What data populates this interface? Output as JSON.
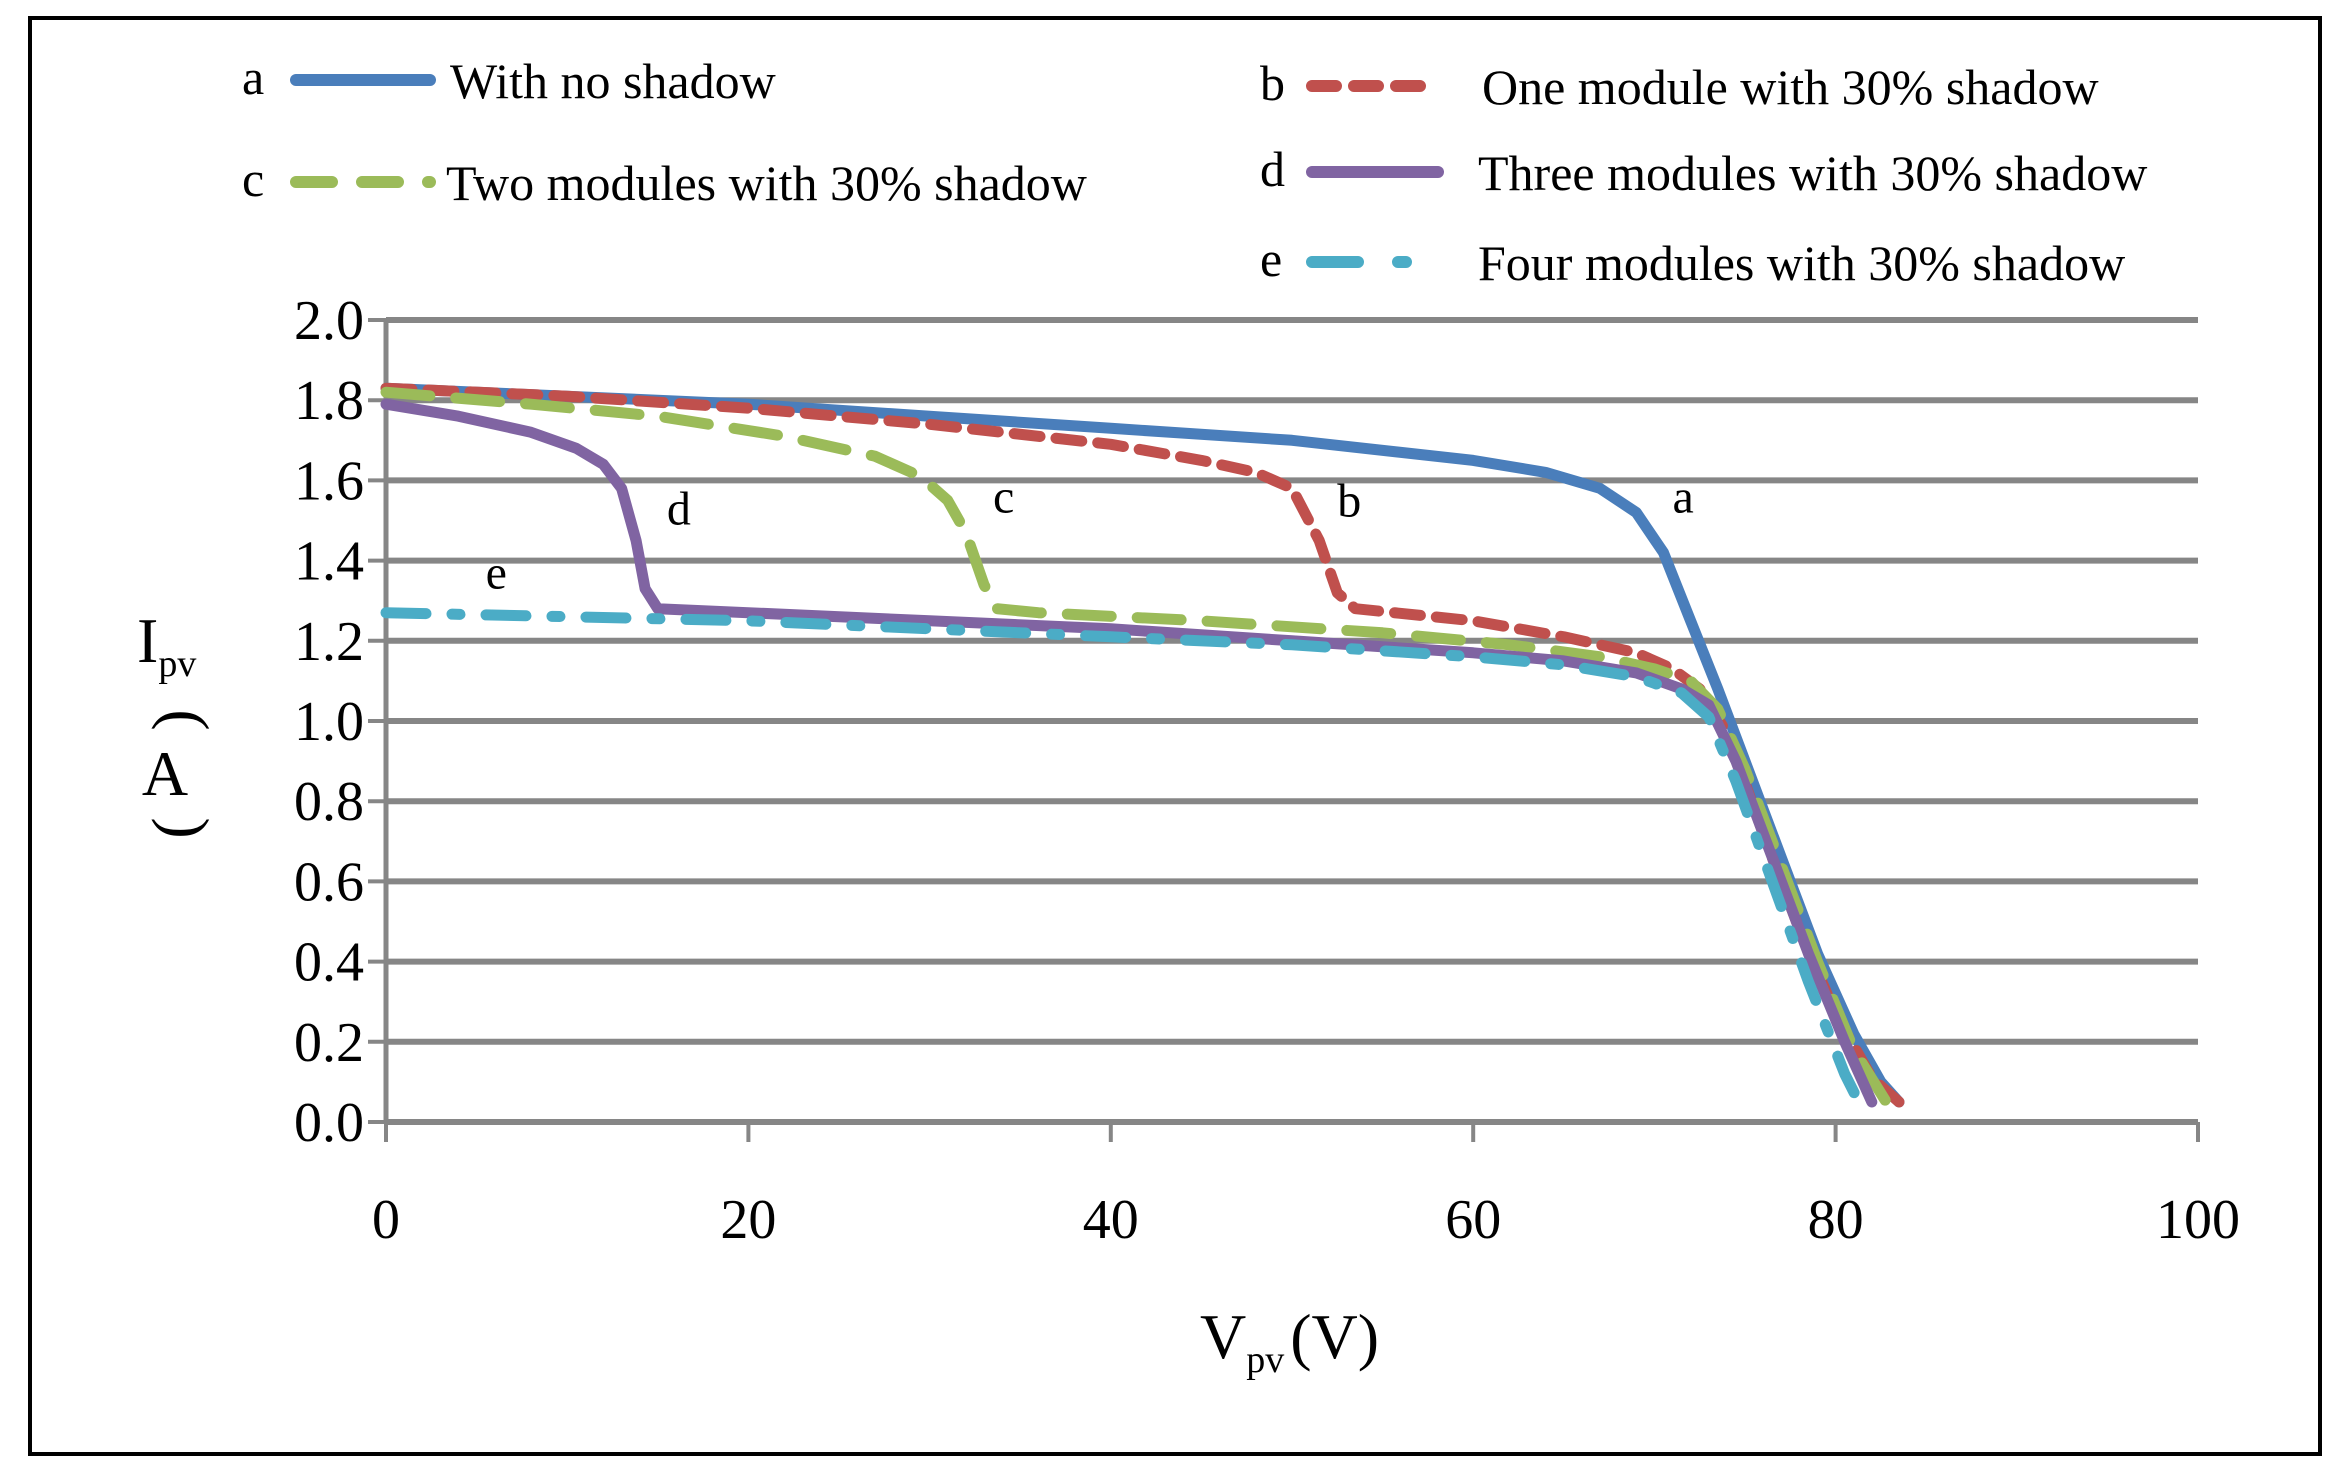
{
  "chart_data": {
    "type": "line",
    "title": "",
    "xlabel_main": "V",
    "xlabel_sub": "pv",
    "xlabel_unit": "(V)",
    "ylabel_main": "I",
    "ylabel_sub": "pv",
    "ylabel_unit_open": "(",
    "ylabel_unit": "A",
    "ylabel_unit_close": ")",
    "xlim": [
      0,
      100
    ],
    "ylim": [
      0,
      2.0
    ],
    "x_ticks": [
      0,
      20,
      40,
      60,
      80,
      100
    ],
    "x_tick_labels": [
      "0",
      "20",
      "40",
      "60",
      "80",
      "100"
    ],
    "y_ticks": [
      0,
      0.2,
      0.4,
      0.6,
      0.8,
      1.0,
      1.2,
      1.4,
      1.6,
      1.8,
      2.0
    ],
    "y_tick_labels": [
      "0.0",
      "0.2",
      "0.4",
      "0.6",
      "0.8",
      "1.0",
      "1.2",
      "1.4",
      "1.6",
      "1.8",
      "2.0"
    ],
    "grid": true,
    "legend_position": "top",
    "series": [
      {
        "id": "a",
        "letter": "a",
        "name": "With no shadow",
        "color": "#4a7ebb",
        "dash": "solid",
        "points": [
          [
            0,
            1.83
          ],
          [
            10,
            1.81
          ],
          [
            20,
            1.79
          ],
          [
            30,
            1.76
          ],
          [
            40,
            1.73
          ],
          [
            50,
            1.7
          ],
          [
            60,
            1.65
          ],
          [
            64,
            1.62
          ],
          [
            67,
            1.58
          ],
          [
            69,
            1.52
          ],
          [
            70.5,
            1.42
          ],
          [
            72,
            1.25
          ],
          [
            73.5,
            1.08
          ],
          [
            75,
            0.9
          ],
          [
            77,
            0.66
          ],
          [
            79,
            0.42
          ],
          [
            81,
            0.22
          ],
          [
            82.5,
            0.1
          ],
          [
            83.5,
            0.05
          ]
        ]
      },
      {
        "id": "b",
        "letter": "b",
        "name": "One module with 30% shadow",
        "color": "#c0504d",
        "dash": "dashed",
        "points": [
          [
            0,
            1.83
          ],
          [
            10,
            1.81
          ],
          [
            20,
            1.78
          ],
          [
            30,
            1.74
          ],
          [
            40,
            1.69
          ],
          [
            45,
            1.65
          ],
          [
            48,
            1.62
          ],
          [
            50,
            1.58
          ],
          [
            51.5,
            1.45
          ],
          [
            52.5,
            1.32
          ],
          [
            53.5,
            1.28
          ],
          [
            60,
            1.25
          ],
          [
            65,
            1.21
          ],
          [
            69,
            1.17
          ],
          [
            71,
            1.13
          ],
          [
            72.5,
            1.08
          ],
          [
            74,
            0.97
          ],
          [
            76,
            0.72
          ],
          [
            78,
            0.48
          ],
          [
            80,
            0.27
          ],
          [
            82,
            0.11
          ],
          [
            83.5,
            0.05
          ]
        ]
      },
      {
        "id": "c",
        "letter": "c",
        "name": "Two modules with 30% shadow",
        "color": "#9bbb59",
        "dash": "longdash",
        "points": [
          [
            0,
            1.82
          ],
          [
            8,
            1.79
          ],
          [
            15,
            1.76
          ],
          [
            22,
            1.71
          ],
          [
            27,
            1.66
          ],
          [
            29.5,
            1.61
          ],
          [
            31,
            1.55
          ],
          [
            32,
            1.47
          ],
          [
            33,
            1.34
          ],
          [
            33.7,
            1.28
          ],
          [
            36,
            1.27
          ],
          [
            45,
            1.25
          ],
          [
            55,
            1.22
          ],
          [
            62,
            1.19
          ],
          [
            67,
            1.16
          ],
          [
            70,
            1.13
          ],
          [
            72,
            1.1
          ],
          [
            73.5,
            1.03
          ],
          [
            75,
            0.88
          ],
          [
            77,
            0.64
          ],
          [
            79,
            0.4
          ],
          [
            81,
            0.18
          ],
          [
            82.8,
            0.05
          ]
        ]
      },
      {
        "id": "d",
        "letter": "d",
        "name": "Three modules with 30% shadow",
        "color": "#8064a2",
        "dash": "solid",
        "points": [
          [
            0,
            1.79
          ],
          [
            4,
            1.76
          ],
          [
            8,
            1.72
          ],
          [
            10.5,
            1.68
          ],
          [
            12,
            1.64
          ],
          [
            13,
            1.58
          ],
          [
            13.8,
            1.45
          ],
          [
            14.3,
            1.33
          ],
          [
            15,
            1.28
          ],
          [
            20,
            1.27
          ],
          [
            30,
            1.25
          ],
          [
            40,
            1.23
          ],
          [
            50,
            1.2
          ],
          [
            60,
            1.17
          ],
          [
            65,
            1.15
          ],
          [
            69,
            1.12
          ],
          [
            71.5,
            1.08
          ],
          [
            73,
            1.04
          ],
          [
            74.5,
            0.9
          ],
          [
            76.5,
            0.66
          ],
          [
            78.5,
            0.42
          ],
          [
            80.5,
            0.2
          ],
          [
            82,
            0.05
          ]
        ]
      },
      {
        "id": "e",
        "letter": "e",
        "name": "Four modules with 30% shadow",
        "color": "#4bacc6",
        "dash": "dashdot",
        "points": [
          [
            0,
            1.27
          ],
          [
            10,
            1.26
          ],
          [
            20,
            1.25
          ],
          [
            30,
            1.23
          ],
          [
            40,
            1.21
          ],
          [
            50,
            1.19
          ],
          [
            60,
            1.16
          ],
          [
            65,
            1.14
          ],
          [
            69,
            1.11
          ],
          [
            71.5,
            1.07
          ],
          [
            73,
            1.01
          ],
          [
            74.5,
            0.85
          ],
          [
            76.5,
            0.6
          ],
          [
            78.5,
            0.35
          ],
          [
            80.5,
            0.12
          ],
          [
            81.5,
            0.03
          ]
        ]
      }
    ],
    "curve_labels": [
      {
        "text": "a",
        "x": 71.0,
        "y": 1.52
      },
      {
        "text": "b",
        "x": 52.5,
        "y": 1.51
      },
      {
        "text": "c",
        "x": 33.5,
        "y": 1.52
      },
      {
        "text": "d",
        "x": 15.5,
        "y": 1.49
      },
      {
        "text": "e",
        "x": 5.5,
        "y": 1.33
      }
    ]
  }
}
